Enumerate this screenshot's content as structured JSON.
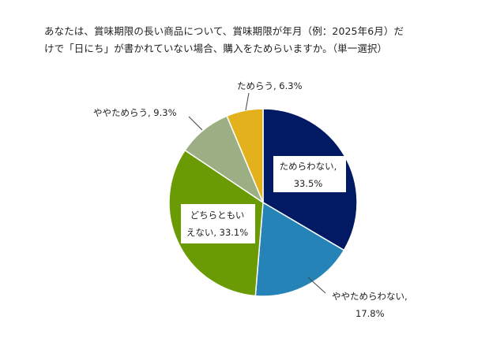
{
  "chart_data": {
    "type": "pie",
    "title_lines": [
      "あなたは、賞味期限の長い商品について、賞味期限が年月（例：2025年6月）だ",
      "けで「日にち」が書かれていない場合、購入をためらいますか。（単一選択）"
    ],
    "start_angle_deg": 0,
    "direction": "clockwise",
    "slices": [
      {
        "label_lines": [
          "ためらわない,",
          "33.5%"
        ],
        "value": 33.5,
        "color": "#011a63"
      },
      {
        "label_lines": [
          "ややためらわない,",
          "17.8%"
        ],
        "value": 17.8,
        "color": "#2583b8"
      },
      {
        "label_lines": [
          "どちらともい",
          "えない, 33.1%"
        ],
        "value": 33.1,
        "color": "#6a9a04"
      },
      {
        "label_lines": [
          "ややためらう, 9.3%"
        ],
        "value": 9.3,
        "color": "#9cae84"
      },
      {
        "label_lines": [
          "ためらう, 6.3%"
        ],
        "value": 6.3,
        "color": "#e3b11c"
      }
    ]
  }
}
